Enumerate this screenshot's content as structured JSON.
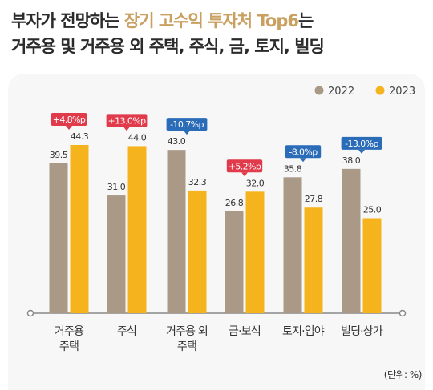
{
  "title": {
    "line1_prefix": "부자가 전망하는",
    "line1_highlight": "장기 고수익 투자처 Top6",
    "line1_suffix": "는",
    "line2": "거주용 및 거주용 외 주택, 주식, 금, 토지, 빌딩"
  },
  "unit_label": "(단위: %)",
  "colors": {
    "series_2022": "#ab9987",
    "series_2023": "#f5b41e",
    "change_up": "#e03a4b",
    "change_down": "#2b6cb8",
    "title_highlight": "#c9a060"
  },
  "chart_data": {
    "type": "bar",
    "categories": [
      "거주용 주택",
      "주식",
      "거주용 외 주택",
      "금·보석",
      "토지·임야",
      "빌딩·상가"
    ],
    "category_lines": [
      [
        "거주용",
        "주택"
      ],
      [
        "주식"
      ],
      [
        "거주용 외",
        "주택"
      ],
      [
        "금·보석"
      ],
      [
        "토지·임야"
      ],
      [
        "빌딩·상가"
      ]
    ],
    "series": [
      {
        "name": "2022",
        "values": [
          39.5,
          31.0,
          43.0,
          26.8,
          35.8,
          38.0
        ],
        "labels": [
          "39.5",
          "31.0",
          "43.0",
          "26.8",
          "35.8",
          "38.0"
        ]
      },
      {
        "name": "2023",
        "values": [
          44.3,
          44.0,
          32.3,
          32.0,
          27.8,
          25.0
        ],
        "labels": [
          "44.3",
          "44.0",
          "32.3",
          "32.0",
          "27.8",
          "25.0"
        ]
      }
    ],
    "changes": [
      {
        "label": "+4.8%p",
        "direction": "up"
      },
      {
        "label": "+13.0%p",
        "direction": "up"
      },
      {
        "label": "-10.7%p",
        "direction": "down"
      },
      {
        "label": "+5.2%p",
        "direction": "up"
      },
      {
        "label": "-8.0%p",
        "direction": "down"
      },
      {
        "label": "-13.0%p",
        "direction": "down"
      }
    ],
    "ylim": [
      0,
      44.3
    ],
    "legend_position": "top-right",
    "grid": false
  }
}
